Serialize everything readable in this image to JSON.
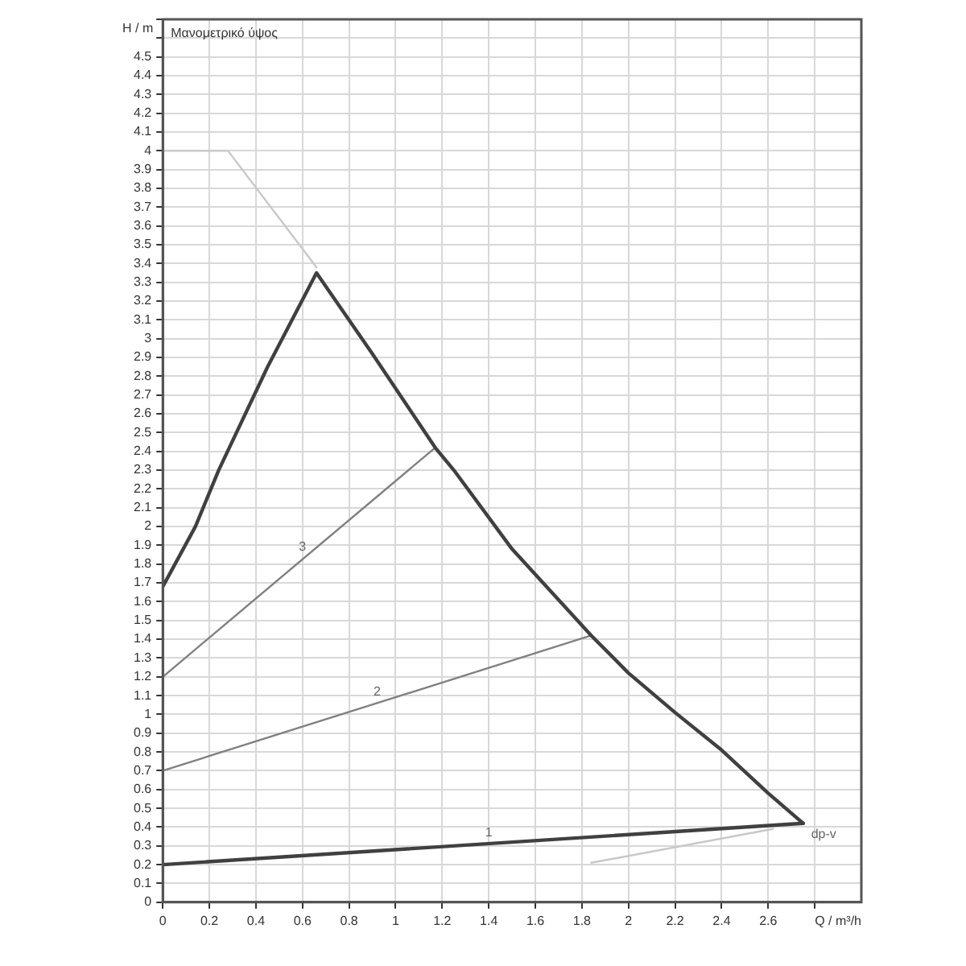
{
  "chart_data": {
    "type": "line",
    "title": "Μανομετρικό ύψος",
    "xlabel": "Q / m³/h",
    "ylabel": "H / m",
    "xlim": [
      0,
      3.0
    ],
    "ylim": [
      0,
      4.7
    ],
    "xticks": [
      0,
      0.2,
      0.4,
      0.6,
      0.8,
      1,
      1.2,
      1.4,
      1.6,
      1.8,
      2,
      2.2,
      2.4,
      2.6,
      {
        "value": 2.8,
        "label": null
      }
    ],
    "yticks": [
      0,
      0.1,
      0.2,
      0.3,
      0.4,
      0.5,
      0.6,
      0.7,
      0.8,
      0.9,
      1,
      1.1,
      1.2,
      1.3,
      1.4,
      1.5,
      1.6,
      1.7,
      1.8,
      1.9,
      2,
      2.1,
      2.2,
      2.3,
      2.4,
      2.5,
      2.6,
      2.7,
      2.8,
      2.9,
      3,
      3.1,
      3.2,
      3.3,
      3.4,
      3.5,
      3.6,
      3.7,
      3.8,
      3.9,
      4,
      4.1,
      4.2,
      4.3,
      4.4,
      4.5,
      {
        "value": 4.6,
        "label": null
      },
      {
        "value": 4.7,
        "label": null
      }
    ],
    "grid": true,
    "marker": "none",
    "line_style": "solid",
    "series": [
      {
        "color": "#404040",
        "x": [
          0,
          0.14,
          0.24,
          0.45,
          0.66,
          0.9,
          1.17,
          1.25,
          1.5,
          1.67,
          1.84,
          2.0,
          2.2,
          2.4,
          2.6,
          2.75
        ],
        "values": [
          1.68,
          2.0,
          2.3,
          2.85,
          3.35,
          2.92,
          2.42,
          2.3,
          1.88,
          1.65,
          1.42,
          1.22,
          1.01,
          0.81,
          0.58,
          0.42
        ]
      },
      {
        "color": "#404040",
        "x": [
          0,
          2.75
        ],
        "values": [
          0.2,
          0.42
        ]
      },
      {
        "color": "#808080",
        "x": [
          0,
          1.84
        ],
        "values": [
          0.7,
          1.42
        ]
      },
      {
        "color": "#808080",
        "x": [
          0,
          1.17
        ],
        "values": [
          1.2,
          2.42
        ]
      },
      {
        "color": "#c8c8c8",
        "x": [
          0,
          0.28,
          0.66
        ],
        "values": [
          4.0,
          4.0,
          3.38
        ]
      },
      {
        "color": "#c8c8c8",
        "x": [
          1.84,
          2.62
        ],
        "values": [
          0.21,
          0.39
        ]
      }
    ],
    "annotations": [
      {
        "text": "1",
        "x": 1.4,
        "y": 0.31
      },
      {
        "text": "2",
        "x": 0.92,
        "y": 1.06
      },
      {
        "text": "3",
        "x": 0.6,
        "y": 1.83
      },
      {
        "text": "dp-v",
        "x": 2.75,
        "y": 0.42
      }
    ]
  }
}
